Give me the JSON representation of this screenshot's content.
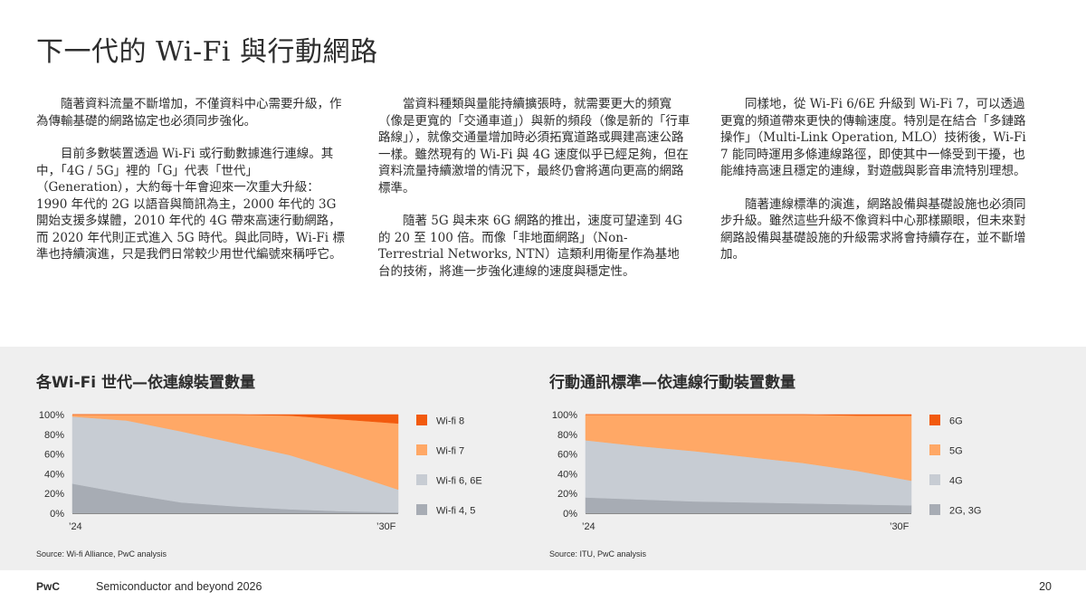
{
  "page": {
    "title": "下一代的 Wi-Fi 與行動網路",
    "paragraphs": {
      "col1": [
        "隨著資料流量不斷增加，不僅資料中心需要升級，作為傳輸基礎的網路協定也必須同步強化。",
        "目前多數裝置透過 Wi-Fi 或行動數據進行連線。其中，「4G / 5G」裡的「G」代表「世代」（Generation），大約每十年會迎來一次重大升級：1990 年代的 2G 以語音與簡訊為主，2000 年代的 3G 開始支援多媒體，2010 年代的 4G 帶來高速行動網路，而 2020 年代則正式進入 5G 時代。與此同時，Wi-Fi 標準也持續演進，只是我們日常較少用世代編號來稱呼它。"
      ],
      "col2": [
        "當資料種類與量能持續擴張時，就需要更大的頻寬（像是更寬的「交通車道」）與新的頻段（像是新的「行車路線」），就像交通量增加時必須拓寬道路或興建高速公路一樣。雖然現有的 Wi-Fi 與 4G 速度似乎已經足夠，但在資料流量持續激增的情況下，最終仍會將邁向更高的網路標準。",
        "隨著 5G 與未來 6G 網路的推出，速度可望達到 4G 的 20 至 100 倍。而像「非地面網路」（Non-Terrestrial Networks, NTN）這類利用衛星作為基地台的技術，將進一步強化連線的速度與穩定性。"
      ],
      "col3": [
        "同樣地，從 Wi-Fi 6/6E 升級到 Wi-Fi 7，可以透過更寬的頻道帶來更快的傳輸速度。特別是在結合「多鏈路操作」（Multi-Link Operation, MLO）技術後，Wi-Fi 7 能同時運用多條連線路徑，即使其中一條受到干擾，也能維持高速且穩定的連線，對遊戲與影音串流特別理想。",
        "隨著連線標準的演進，網路設備與基礎設施也必須同步升級。雖然這些升級不像資料中心那樣顯眼，但未來對網路設備與基礎設施的升級需求將會持續存在，並不斷增加。"
      ]
    },
    "footer": {
      "brand": "PwC",
      "text": "Semiconductor and beyond 2026",
      "page_number": "20"
    }
  },
  "charts_text": {
    "wifi_source": "Source:  Wi-fi Alliance, PwC analysis",
    "mobile_source": "Source: ITU, PwC analysis"
  },
  "chart_data": [
    {
      "type": "area",
      "stacked": true,
      "title": "各Wi-Fi 世代—依連線裝置數量",
      "x": [
        2024,
        2025,
        2026,
        2027,
        2028,
        2029,
        2030
      ],
      "x_tick_labels": [
        "’24",
        "’30F"
      ],
      "y_ticks": [
        "0%",
        "20%",
        "40%",
        "60%",
        "80%",
        "100%"
      ],
      "ylim": [
        0,
        100
      ],
      "legend_position": "right",
      "series": [
        {
          "name": "Wi-fi 4, 5",
          "color": "#a7acb4",
          "values": [
            30,
            20,
            11,
            7,
            4,
            2,
            1
          ]
        },
        {
          "name": "Wi-fi 6, 6E",
          "color": "#c7ccd3",
          "values": [
            68,
            74,
            72,
            64,
            55,
            40,
            23
          ]
        },
        {
          "name": "Wi-fi 7",
          "color": "#ffa866",
          "values": [
            2,
            6,
            17,
            29,
            40,
            53,
            67
          ]
        },
        {
          "name": "Wi-fi 8",
          "color": "#f25a0e",
          "values": [
            0,
            0,
            0,
            0,
            1,
            5,
            9
          ]
        }
      ]
    },
    {
      "type": "area",
      "stacked": true,
      "title": "行動通訊標準—依連線行動裝置數量",
      "x": [
        2024,
        2025,
        2026,
        2027,
        2028,
        2029,
        2030
      ],
      "x_tick_labels": [
        "’24",
        "’30F"
      ],
      "y_ticks": [
        "0%",
        "20%",
        "40%",
        "60%",
        "80%",
        "100%"
      ],
      "ylim": [
        0,
        100
      ],
      "legend_position": "right",
      "series": [
        {
          "name": "2G, 3G",
          "color": "#a7acb4",
          "values": [
            16,
            14,
            12,
            11,
            10,
            9,
            8
          ]
        },
        {
          "name": "4G",
          "color": "#c7ccd3",
          "values": [
            58,
            54,
            51,
            46,
            41,
            34,
            25
          ]
        },
        {
          "name": "5G",
          "color": "#ffa866",
          "values": [
            26,
            32,
            37,
            43,
            49,
            56,
            66
          ]
        },
        {
          "name": "6G",
          "color": "#f25a0e",
          "values": [
            0,
            0,
            0,
            0,
            0,
            1,
            1
          ]
        }
      ]
    }
  ]
}
